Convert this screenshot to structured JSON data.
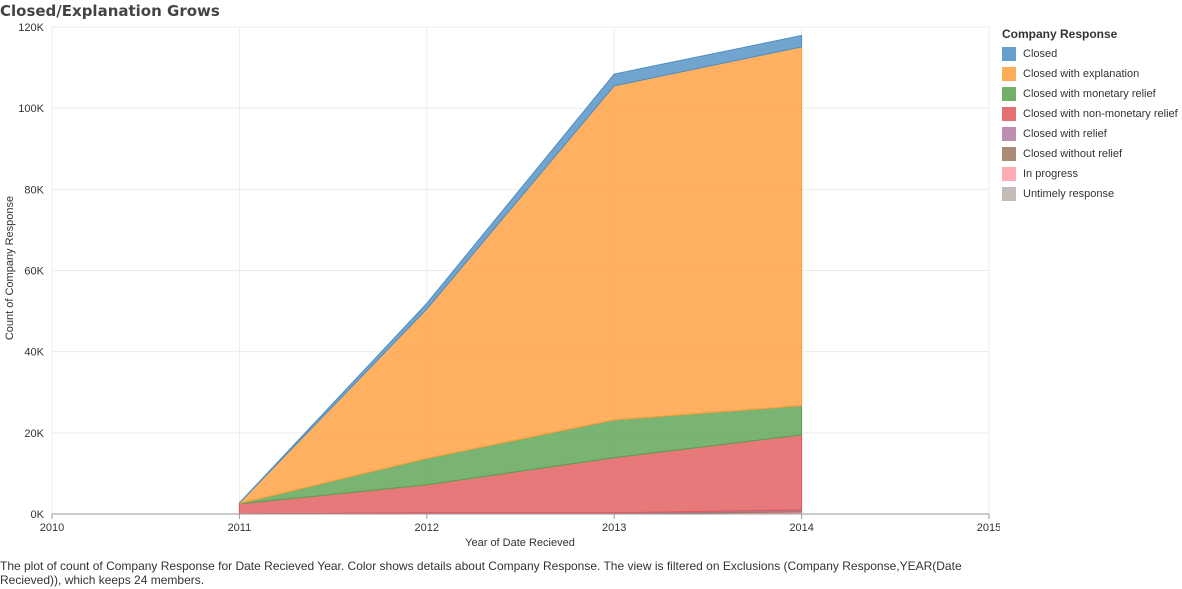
{
  "title": "Closed/Explanation Grows",
  "caption": "The plot of count of Company Response for Date Recieved Year.  Color shows details about Company Response. The view is filtered on Exclusions (Company Response,YEAR(Date Recieved)), which keeps 24 members.",
  "legend": {
    "title": "Company Response",
    "placement": "right"
  },
  "chart_data": {
    "type": "area",
    "stacked": true,
    "title": "Closed/Explanation Grows",
    "xlabel": "Year of Date Recieved",
    "ylabel": "Count of Company Response",
    "xlim": [
      2010,
      2015
    ],
    "ylim": [
      0,
      120000
    ],
    "x_ticks": [
      "2010",
      "2011",
      "2012",
      "2013",
      "2014",
      "2015"
    ],
    "y_ticks": [
      {
        "value": 0,
        "label": "0K"
      },
      {
        "value": 20000,
        "label": "20K"
      },
      {
        "value": 40000,
        "label": "40K"
      },
      {
        "value": 60000,
        "label": "60K"
      },
      {
        "value": 80000,
        "label": "80K"
      },
      {
        "value": 100000,
        "label": "100K"
      },
      {
        "value": 120000,
        "label": "120K"
      }
    ],
    "grid": true,
    "x": [
      2011,
      2012,
      2013,
      2014
    ],
    "series": [
      {
        "name": "Untimely response",
        "color": "#bab0ab",
        "values": [
          0,
          0,
          0,
          300
        ]
      },
      {
        "name": "In progress",
        "color": "#ff9da7",
        "values": [
          0,
          0,
          0,
          200
        ]
      },
      {
        "name": "Closed without relief",
        "color": "#9c755f",
        "values": [
          0,
          200,
          200,
          300
        ]
      },
      {
        "name": "Closed with relief",
        "color": "#b07aa1",
        "values": [
          0,
          100,
          100,
          200
        ]
      },
      {
        "name": "Closed with non-monetary relief",
        "color": "#e15759",
        "values": [
          2500,
          6900,
          13600,
          18500
        ]
      },
      {
        "name": "Closed with monetary relief",
        "color": "#59a14f",
        "values": [
          100,
          6500,
          9300,
          7200
        ]
      },
      {
        "name": "Closed with explanation",
        "color": "#ff9d3a",
        "values": [
          100,
          36800,
          82300,
          88400
        ]
      },
      {
        "name": "Closed",
        "color": "#4e8fc4",
        "values": [
          50,
          1400,
          2900,
          2800
        ]
      }
    ],
    "legend_order": [
      "Closed",
      "Closed with explanation",
      "Closed with monetary relief",
      "Closed with non-monetary relief",
      "Closed with relief",
      "Closed without relief",
      "In progress",
      "Untimely response"
    ]
  }
}
